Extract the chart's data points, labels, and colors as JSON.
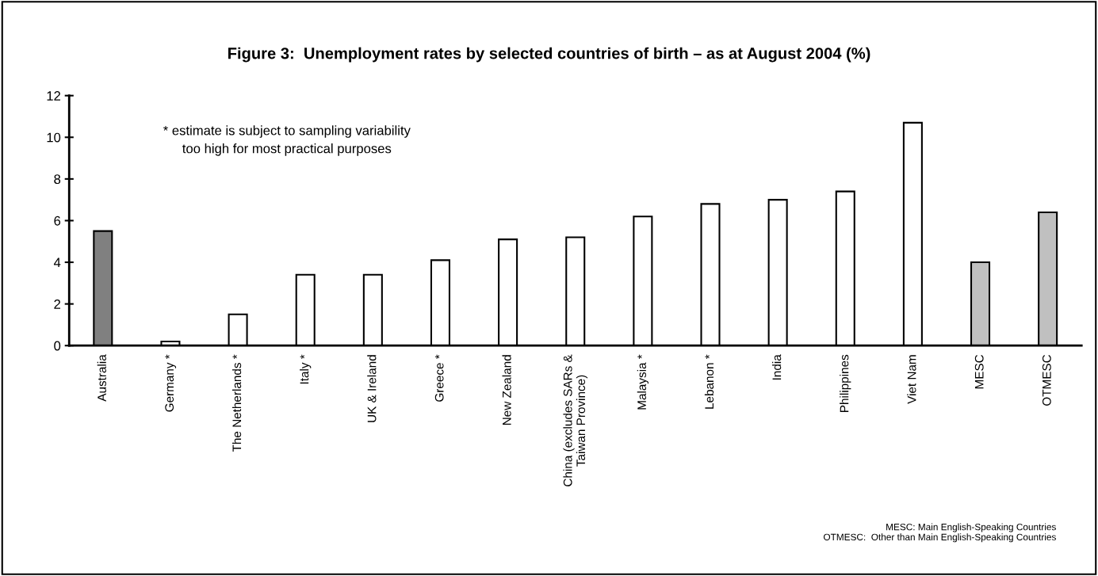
{
  "chart_data": {
    "type": "bar",
    "title": "Figure 3:  Unemployment rates by selected countries of birth – as at August 2004 (%)",
    "categories": [
      "Australia",
      "Germany *",
      "The Netherlands *",
      "Italy *",
      "UK & Ireland",
      "Greece *",
      "New Zealand",
      "China (excludes SARs &\nTaiwan Province)",
      "Malaysia *",
      "Lebanon *",
      "India",
      "Philippines",
      "Viet Nam",
      "MESC",
      "OTMESC"
    ],
    "values": [
      5.5,
      0.2,
      1.5,
      3.4,
      3.4,
      4.1,
      5.1,
      5.2,
      6.2,
      6.8,
      7.0,
      7.4,
      10.7,
      4.0,
      6.4
    ],
    "colors": [
      "#808080",
      "#ffffff",
      "#ffffff",
      "#ffffff",
      "#ffffff",
      "#ffffff",
      "#ffffff",
      "#ffffff",
      "#ffffff",
      "#ffffff",
      "#ffffff",
      "#ffffff",
      "#ffffff",
      "#c0c0c0",
      "#c0c0c0"
    ],
    "ylim": [
      0,
      12
    ],
    "yticks": [
      0,
      2,
      4,
      6,
      8,
      10,
      12
    ],
    "grid": false,
    "annotations": [
      "* estimate is subject to sampling variability\ntoo high for most practical purposes",
      "MESC: Main English-Speaking Countries\nOTMESC:  Other than Main English-Speaking Countries"
    ]
  }
}
